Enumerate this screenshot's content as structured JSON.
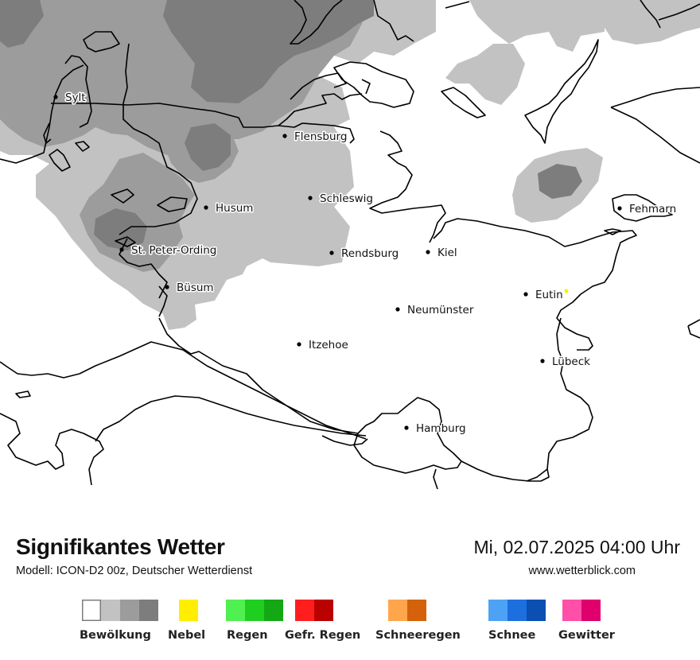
{
  "map": {
    "region": "Schleswig-Holstein",
    "cities": [
      {
        "name": "Sylt"
      },
      {
        "name": "Flensburg"
      },
      {
        "name": "Schleswig"
      },
      {
        "name": "Husum"
      },
      {
        "name": "St. Peter-Ording"
      },
      {
        "name": "Rendsburg"
      },
      {
        "name": "Kiel"
      },
      {
        "name": "Fehmarn"
      },
      {
        "name": "Büsum"
      },
      {
        "name": "Eutin"
      },
      {
        "name": "Neumünster"
      },
      {
        "name": "Itzehoe"
      },
      {
        "name": "Lübeck"
      },
      {
        "name": "Hamburg"
      }
    ]
  },
  "header": {
    "title": "Signifikantes Wetter",
    "subtitle": "Modell: ICON-D2 00z, Deutscher Wetterdienst",
    "datetime": "Mi, 02.07.2025 04:00 Uhr",
    "website": "www.wetterblick.com"
  },
  "legend": [
    {
      "label": "Bewölkung",
      "colors": [
        "#ffffff",
        "#c2c2c2",
        "#9c9c9c",
        "#7d7d7d"
      ]
    },
    {
      "label": "Nebel",
      "colors": [
        "#ffee00"
      ]
    },
    {
      "label": "Regen",
      "colors": [
        "#4ff04f",
        "#1fcf1f",
        "#14a814"
      ]
    },
    {
      "label": "Gefr. Regen",
      "colors": [
        "#ff1e1e",
        "#bb0000"
      ]
    },
    {
      "label": "Schneeregen",
      "colors": [
        "#ffa64d",
        "#d4620a"
      ]
    },
    {
      "label": "Schnee",
      "colors": [
        "#4ea2f5",
        "#1d6fe0",
        "#0b4fb3"
      ]
    },
    {
      "label": "Gewitter",
      "colors": [
        "#ff4fa8",
        "#e0006d"
      ]
    }
  ],
  "colors": {
    "cloud_light": "#c2c2c2",
    "cloud_medium": "#9c9c9c",
    "cloud_dark": "#7d7d7d",
    "coastline": "#000000",
    "background": "#ffffff"
  }
}
